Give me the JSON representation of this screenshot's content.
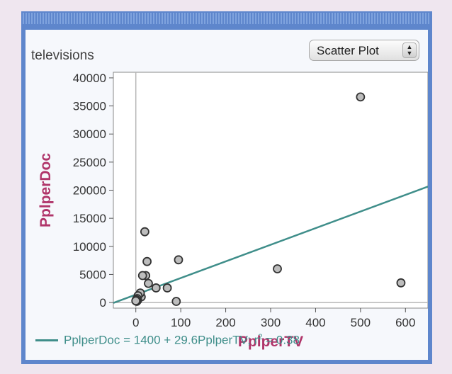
{
  "window": {
    "dataset_label": "televisions"
  },
  "plot_type": {
    "selected": "Scatter Plot"
  },
  "colors": {
    "frame": "#5e86cc",
    "axis_label": "#b0356a",
    "fit_line": "#3f8e8a",
    "point_stroke": "#333333"
  },
  "icons": {
    "select_arrows": "up-down-arrows-icon"
  },
  "legend": {
    "equation": "PplperDoc = 1400 + 29.6PplperTV; r",
    "r2_exponent": "2",
    "r2_value": " = 0.38"
  },
  "chart_data": {
    "type": "scatter",
    "xlabel": "PplperTV",
    "ylabel": "PplperDoc",
    "xlim": [
      -50,
      650
    ],
    "ylim": [
      -1000,
      41000
    ],
    "xticks": [
      0,
      100,
      200,
      300,
      400,
      500,
      600
    ],
    "yticks": [
      0,
      5000,
      10000,
      15000,
      20000,
      25000,
      30000,
      35000,
      40000
    ],
    "points": [
      {
        "x": 500,
        "y": 36600
      },
      {
        "x": 590,
        "y": 3500
      },
      {
        "x": 315,
        "y": 6000
      },
      {
        "x": 95,
        "y": 7600
      },
      {
        "x": 90,
        "y": 200
      },
      {
        "x": 70,
        "y": 2600
      },
      {
        "x": 45,
        "y": 2600
      },
      {
        "x": 28,
        "y": 3400
      },
      {
        "x": 20,
        "y": 12600
      },
      {
        "x": 25,
        "y": 7300
      },
      {
        "x": 22,
        "y": 4800
      },
      {
        "x": 15,
        "y": 4800
      },
      {
        "x": 12,
        "y": 1000
      },
      {
        "x": 10,
        "y": 1700
      },
      {
        "x": 5,
        "y": 1200
      },
      {
        "x": 4,
        "y": 400
      },
      {
        "x": 3,
        "y": 700
      },
      {
        "x": 2,
        "y": 200
      },
      {
        "x": 1,
        "y": 500
      },
      {
        "x": 0,
        "y": 300
      }
    ],
    "fit": {
      "intercept": 1400,
      "slope": 29.6,
      "r2": 0.38
    },
    "grid": false
  }
}
